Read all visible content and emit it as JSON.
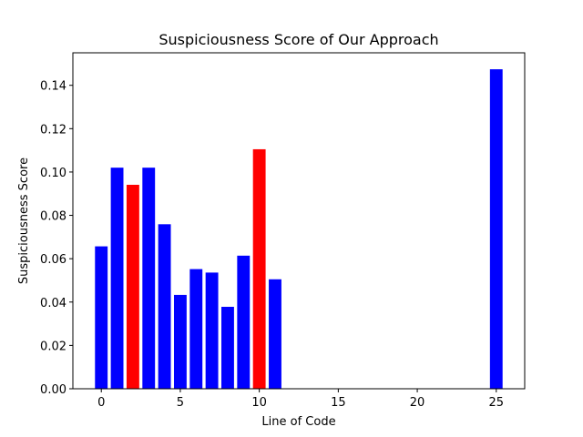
{
  "chart_data": {
    "type": "bar",
    "title": "Suspiciousness Score of Our Approach",
    "xlabel": "Line of Code",
    "ylabel": "Suspiciousness Score",
    "xlim": [
      -1.8,
      26.8
    ],
    "ylim": [
      0,
      0.155
    ],
    "xticks": [
      0,
      5,
      10,
      15,
      20,
      25
    ],
    "yticks": [
      0.0,
      0.02,
      0.04,
      0.06,
      0.08,
      0.1,
      0.12,
      0.14
    ],
    "bar_width": 0.8,
    "grid": false,
    "bars": [
      {
        "x": 0,
        "value": 0.0657,
        "color": "#0000ff"
      },
      {
        "x": 1,
        "value": 0.102,
        "color": "#0000ff"
      },
      {
        "x": 2,
        "value": 0.0941,
        "color": "#ff0000"
      },
      {
        "x": 3,
        "value": 0.102,
        "color": "#0000ff"
      },
      {
        "x": 4,
        "value": 0.0759,
        "color": "#0000ff"
      },
      {
        "x": 5,
        "value": 0.0433,
        "color": "#0000ff"
      },
      {
        "x": 6,
        "value": 0.0552,
        "color": "#0000ff"
      },
      {
        "x": 7,
        "value": 0.0536,
        "color": "#0000ff"
      },
      {
        "x": 8,
        "value": 0.0378,
        "color": "#0000ff"
      },
      {
        "x": 9,
        "value": 0.0614,
        "color": "#0000ff"
      },
      {
        "x": 10,
        "value": 0.1105,
        "color": "#ff0000"
      },
      {
        "x": 11,
        "value": 0.0505,
        "color": "#0000ff"
      },
      {
        "x": 25,
        "value": 0.1474,
        "color": "#0000ff"
      }
    ]
  }
}
